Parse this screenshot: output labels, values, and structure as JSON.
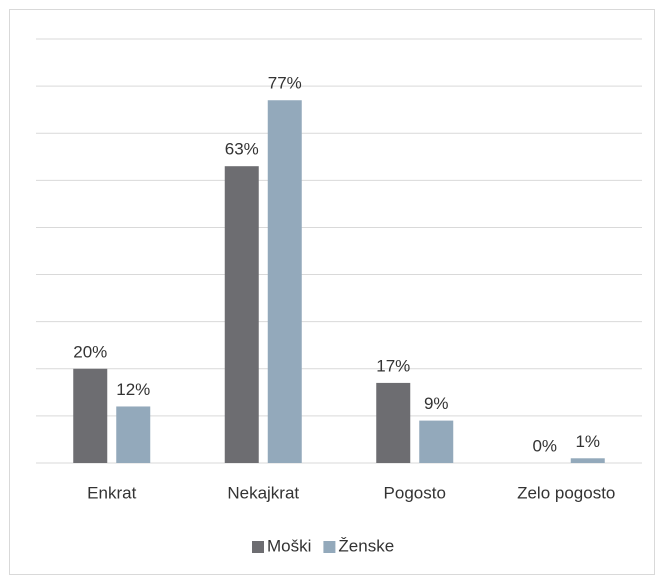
{
  "chart_data": {
    "type": "bar",
    "categories": [
      "Enkrat",
      "Nekajkrat",
      "Pogosto",
      "Zelo pogosto"
    ],
    "series": [
      {
        "name": "Moški",
        "color": "#6d6d71",
        "values": [
          20,
          63,
          17,
          0
        ],
        "value_labels": [
          "20%",
          "63%",
          "17%",
          "0%"
        ]
      },
      {
        "name": "Ženske",
        "color": "#93a9bb",
        "values": [
          12,
          77,
          9,
          1
        ],
        "value_labels": [
          "12%",
          "77%",
          "9%",
          "1%"
        ]
      }
    ],
    "ylim": [
      0,
      90
    ],
    "yticks": [
      0,
      10,
      20,
      30,
      40,
      50,
      60,
      70,
      80,
      90
    ],
    "grid": true,
    "legend": "bottom"
  }
}
